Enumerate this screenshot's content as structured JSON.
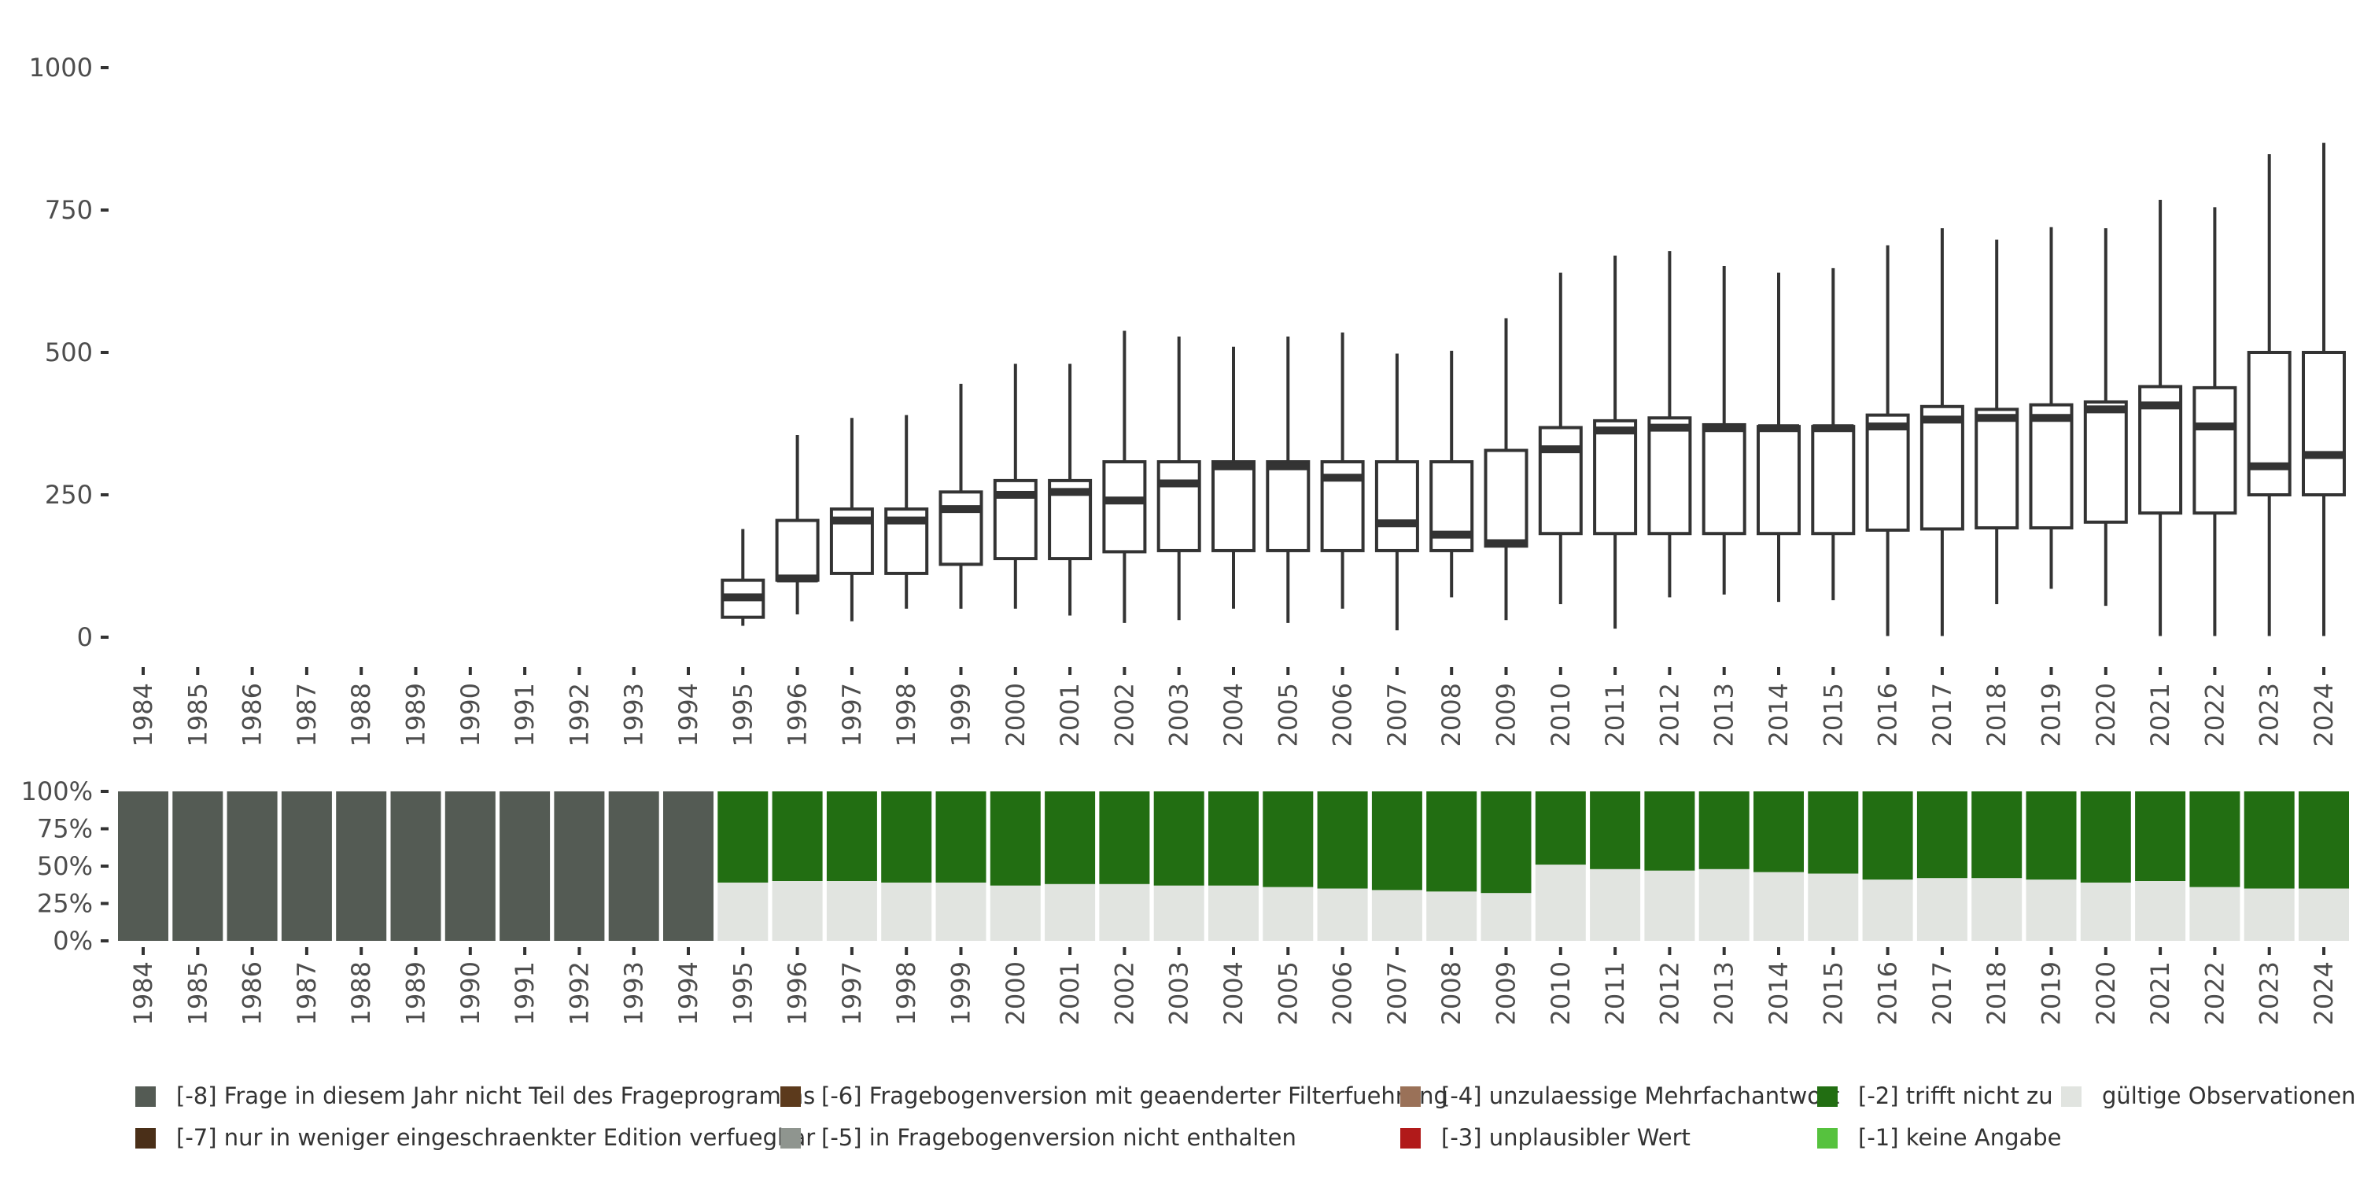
{
  "chart_data": [
    {
      "type": "boxplot",
      "title": "",
      "xlabel": "",
      "ylabel": "",
      "ylim": [
        0,
        1000
      ],
      "yticks": [
        0,
        250,
        500,
        750,
        1000
      ],
      "yticks_labels": [
        "0",
        "250",
        "500",
        "750",
        "1000"
      ],
      "categories": [
        "1984",
        "1985",
        "1986",
        "1987",
        "1988",
        "1989",
        "1990",
        "1991",
        "1992",
        "1993",
        "1994",
        "1995",
        "1996",
        "1997",
        "1998",
        "1999",
        "2000",
        "2001",
        "2002",
        "2003",
        "2004",
        "2005",
        "2006",
        "2007",
        "2008",
        "2009",
        "2010",
        "2011",
        "2012",
        "2013",
        "2014",
        "2015",
        "2016",
        "2017",
        "2018",
        "2019",
        "2020",
        "2021",
        "2022",
        "2023",
        "2024"
      ],
      "boxes": [
        {
          "year": "1995",
          "whisker_low": 20,
          "q1": 35,
          "median": 70,
          "q3": 100,
          "whisker_high": 190
        },
        {
          "year": "1996",
          "whisker_low": 40,
          "q1": 100,
          "median": 103,
          "q3": 205,
          "whisker_high": 355
        },
        {
          "year": "1997",
          "whisker_low": 28,
          "q1": 112,
          "median": 205,
          "q3": 225,
          "whisker_high": 385
        },
        {
          "year": "1998",
          "whisker_low": 50,
          "q1": 112,
          "median": 205,
          "q3": 225,
          "whisker_high": 390
        },
        {
          "year": "1999",
          "whisker_low": 50,
          "q1": 128,
          "median": 225,
          "q3": 255,
          "whisker_high": 445
        },
        {
          "year": "2000",
          "whisker_low": 50,
          "q1": 138,
          "median": 250,
          "q3": 275,
          "whisker_high": 480
        },
        {
          "year": "2001",
          "whisker_low": 38,
          "q1": 138,
          "median": 255,
          "q3": 275,
          "whisker_high": 480
        },
        {
          "year": "2002",
          "whisker_low": 25,
          "q1": 150,
          "median": 240,
          "q3": 308,
          "whisker_high": 538
        },
        {
          "year": "2003",
          "whisker_low": 30,
          "q1": 152,
          "median": 270,
          "q3": 308,
          "whisker_high": 528
        },
        {
          "year": "2004",
          "whisker_low": 50,
          "q1": 152,
          "median": 300,
          "q3": 308,
          "whisker_high": 510
        },
        {
          "year": "2005",
          "whisker_low": 25,
          "q1": 152,
          "median": 300,
          "q3": 308,
          "whisker_high": 528
        },
        {
          "year": "2006",
          "whisker_low": 50,
          "q1": 152,
          "median": 280,
          "q3": 308,
          "whisker_high": 535
        },
        {
          "year": "2007",
          "whisker_low": 12,
          "q1": 152,
          "median": 200,
          "q3": 308,
          "whisker_high": 498
        },
        {
          "year": "2008",
          "whisker_low": 70,
          "q1": 152,
          "median": 180,
          "q3": 308,
          "whisker_high": 503
        },
        {
          "year": "2009",
          "whisker_low": 30,
          "q1": 160,
          "median": 165,
          "q3": 328,
          "whisker_high": 560
        },
        {
          "year": "2010",
          "whisker_low": 58,
          "q1": 182,
          "median": 330,
          "q3": 368,
          "whisker_high": 640
        },
        {
          "year": "2011",
          "whisker_low": 15,
          "q1": 182,
          "median": 363,
          "q3": 380,
          "whisker_high": 670
        },
        {
          "year": "2012",
          "whisker_low": 70,
          "q1": 182,
          "median": 368,
          "q3": 385,
          "whisker_high": 678
        },
        {
          "year": "2013",
          "whisker_low": 75,
          "q1": 182,
          "median": 367,
          "q3": 373,
          "whisker_high": 652
        },
        {
          "year": "2014",
          "whisker_low": 62,
          "q1": 182,
          "median": 367,
          "q3": 370,
          "whisker_high": 640
        },
        {
          "year": "2015",
          "whisker_low": 65,
          "q1": 182,
          "median": 367,
          "q3": 370,
          "whisker_high": 648
        },
        {
          "year": "2016",
          "whisker_low": 2,
          "q1": 188,
          "median": 370,
          "q3": 390,
          "whisker_high": 688
        },
        {
          "year": "2017",
          "whisker_low": 2,
          "q1": 190,
          "median": 382,
          "q3": 405,
          "whisker_high": 718
        },
        {
          "year": "2018",
          "whisker_low": 58,
          "q1": 192,
          "median": 385,
          "q3": 400,
          "whisker_high": 698
        },
        {
          "year": "2019",
          "whisker_low": 85,
          "q1": 192,
          "median": 385,
          "q3": 408,
          "whisker_high": 720
        },
        {
          "year": "2020",
          "whisker_low": 55,
          "q1": 202,
          "median": 400,
          "q3": 413,
          "whisker_high": 718
        },
        {
          "year": "2021",
          "whisker_low": 2,
          "q1": 218,
          "median": 407,
          "q3": 440,
          "whisker_high": 768
        },
        {
          "year": "2022",
          "whisker_low": 2,
          "q1": 218,
          "median": 370,
          "q3": 438,
          "whisker_high": 755
        },
        {
          "year": "2023",
          "whisker_low": 2,
          "q1": 250,
          "median": 300,
          "q3": 500,
          "whisker_high": 848
        },
        {
          "year": "2024",
          "whisker_low": 2,
          "q1": 250,
          "median": 320,
          "q3": 500,
          "whisker_high": 868
        }
      ]
    },
    {
      "type": "stacked_bar",
      "ylim": [
        0,
        100
      ],
      "yticks_labels": [
        "0%",
        "25%",
        "50%",
        "75%",
        "100%"
      ],
      "categories": [
        "1984",
        "1985",
        "1986",
        "1987",
        "1988",
        "1989",
        "1990",
        "1991",
        "1992",
        "1993",
        "1994",
        "1995",
        "1996",
        "1997",
        "1998",
        "1999",
        "2000",
        "2001",
        "2002",
        "2003",
        "2004",
        "2005",
        "2006",
        "2007",
        "2008",
        "2009",
        "2010",
        "2011",
        "2012",
        "2013",
        "2014",
        "2015",
        "2016",
        "2017",
        "2018",
        "2019",
        "2020",
        "2021",
        "2022",
        "2023",
        "2024"
      ],
      "series": [
        {
          "name": "gültige Observationen",
          "color": "#e1e4e0",
          "values": [
            0,
            0,
            0,
            0,
            0,
            0,
            0,
            0,
            0,
            0,
            0,
            39,
            40,
            40,
            39,
            39,
            37,
            38,
            38,
            37,
            37,
            36,
            35,
            34,
            33,
            32,
            51,
            48,
            47,
            48,
            46,
            45,
            41,
            42,
            42,
            41,
            39,
            40,
            36,
            35,
            35
          ]
        },
        {
          "name": "[-2] trifft nicht zu",
          "color": "#226e12",
          "values": [
            0,
            0,
            0,
            0,
            0,
            0,
            0,
            0,
            0,
            0,
            0,
            61,
            60,
            60,
            61,
            61,
            63,
            62,
            62,
            63,
            63,
            64,
            65,
            66,
            67,
            68,
            49,
            52,
            53,
            52,
            54,
            55,
            59,
            58,
            58,
            59,
            61,
            60,
            64,
            65,
            65
          ]
        },
        {
          "name": "[-8] Frage in diesem Jahr nicht Teil des Frageprogramms",
          "color": "#545b54",
          "values": [
            100,
            100,
            100,
            100,
            100,
            100,
            100,
            100,
            100,
            100,
            100,
            0,
            0,
            0,
            0,
            0,
            0,
            0,
            0,
            0,
            0,
            0,
            0,
            0,
            0,
            0,
            0,
            0,
            0,
            0,
            0,
            0,
            0,
            0,
            0,
            0,
            0,
            0,
            0,
            0,
            0
          ]
        }
      ]
    }
  ],
  "legend": [
    {
      "label": "[-8] Frage in diesem Jahr nicht Teil des Frageprogramms",
      "color": "#545b54"
    },
    {
      "label": "[-7] nur in weniger eingeschraenkter Edition verfuegbar",
      "color": "#4a2f18"
    },
    {
      "label": "[-6] Fragebogenversion mit geaenderter Filterfuehrung",
      "color": "#5c3a1c"
    },
    {
      "label": "[-5] in Fragebogenversion nicht enthalten",
      "color": "#8f958f"
    },
    {
      "label": "[-4] unzulaessige Mehrfachantwort",
      "color": "#9a7158"
    },
    {
      "label": "[-3] unplausibler Wert",
      "color": "#b11a1a"
    },
    {
      "label": "[-2] trifft nicht zu",
      "color": "#226e12"
    },
    {
      "label": "[-1] keine Angabe",
      "color": "#56c23e"
    },
    {
      "label": "gültige Observationen",
      "color": "#e1e4e0"
    }
  ]
}
